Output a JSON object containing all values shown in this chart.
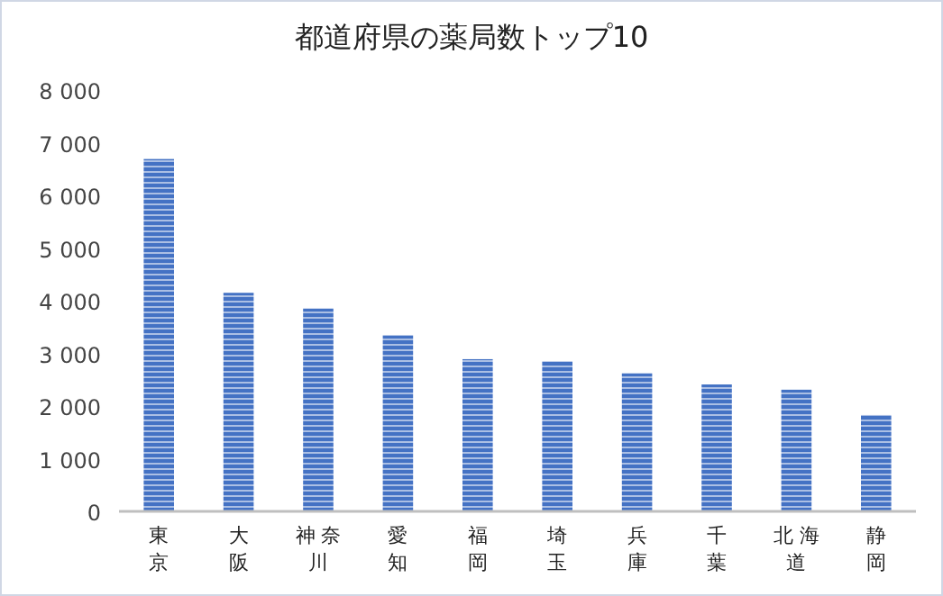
{
  "chart_data": {
    "type": "bar",
    "title": "都道府県の薬局数トップ10",
    "categories": [
      "東京",
      "大阪",
      "神奈川",
      "愛知",
      "福岡",
      "埼玉",
      "兵庫",
      "千葉",
      "北海道",
      "静岡"
    ],
    "values": [
      6690,
      4150,
      3850,
      3340,
      2890,
      2850,
      2620,
      2410,
      2310,
      1830
    ],
    "color": "#4472c4",
    "ylim": [
      0,
      8000
    ],
    "yticks": [
      {
        "value": 0,
        "label": "0"
      },
      {
        "value": 1000,
        "label": "1 000"
      },
      {
        "value": 2000,
        "label": "2 000"
      },
      {
        "value": 3000,
        "label": "3 000"
      },
      {
        "value": 4000,
        "label": "4 000"
      },
      {
        "value": 5000,
        "label": "5 000"
      },
      {
        "value": 6000,
        "label": "6 000"
      },
      {
        "value": 7000,
        "label": "7 000"
      },
      {
        "value": 8000,
        "label": "8 000"
      }
    ],
    "grid": false
  }
}
